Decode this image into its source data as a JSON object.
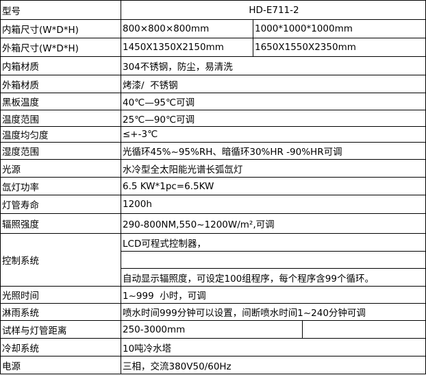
{
  "rows": [
    {
      "label": "型号",
      "value": "HD-E711-2"
    },
    {
      "label": "内箱尺寸(W*D*H)",
      "value": "800×800×800mm",
      "value2": "1000*1000*1000mm"
    },
    {
      "label": "外箱尺寸(W*D*H)",
      "value": "1450X1350X2150mm",
      "value2": "1650X1550X2350mm"
    },
    {
      "label": "内箱材质",
      "value": "304不锈钢，防尘，易清洗"
    },
    {
      "label": "外箱材质",
      "value": "烤漆/  不锈钢"
    },
    {
      "label": "黑板温度",
      "value": "40℃—95℃可调"
    },
    {
      "label": "温度范围",
      "value": "25℃—90℃可调"
    },
    {
      "label": "温度均匀度",
      "value": "≤+-3℃"
    },
    {
      "label": "湿度范围",
      "value": "光循环45%~95%RH、暗循环30%HR -90%HR可调"
    },
    {
      "label": "光源",
      "value": "水冷型全太阳能光谱长弧氙灯"
    },
    {
      "label": "氙灯功率",
      "value": "6.5 KW*1pc=6.5KW"
    },
    {
      "label": "灯管寿命",
      "value": "1200h"
    },
    {
      "label": "辐照强度",
      "value": "290-800NM,550~1200W/m²,可调"
    },
    {
      "label": "控制系统",
      "lines": [
        "LCD可程式控制器，",
        "",
        "自动显示辐照度，可设定100组程序，每个程序含99个循环。"
      ]
    },
    {
      "label": "光照时间",
      "value": "1~999  小时，可调"
    },
    {
      "label": "淋雨系统",
      "value": "喷水时间999分钟可以设置，间断喷水时间1~240分钟可调"
    },
    {
      "label": "试样与灯管距离",
      "value": "250-3000mm",
      "value2": ""
    },
    {
      "label": "冷却系统",
      "value": "10吨冷水塔"
    },
    {
      "label": "电源",
      "value": "三相，交流380V50/60Hz"
    }
  ]
}
